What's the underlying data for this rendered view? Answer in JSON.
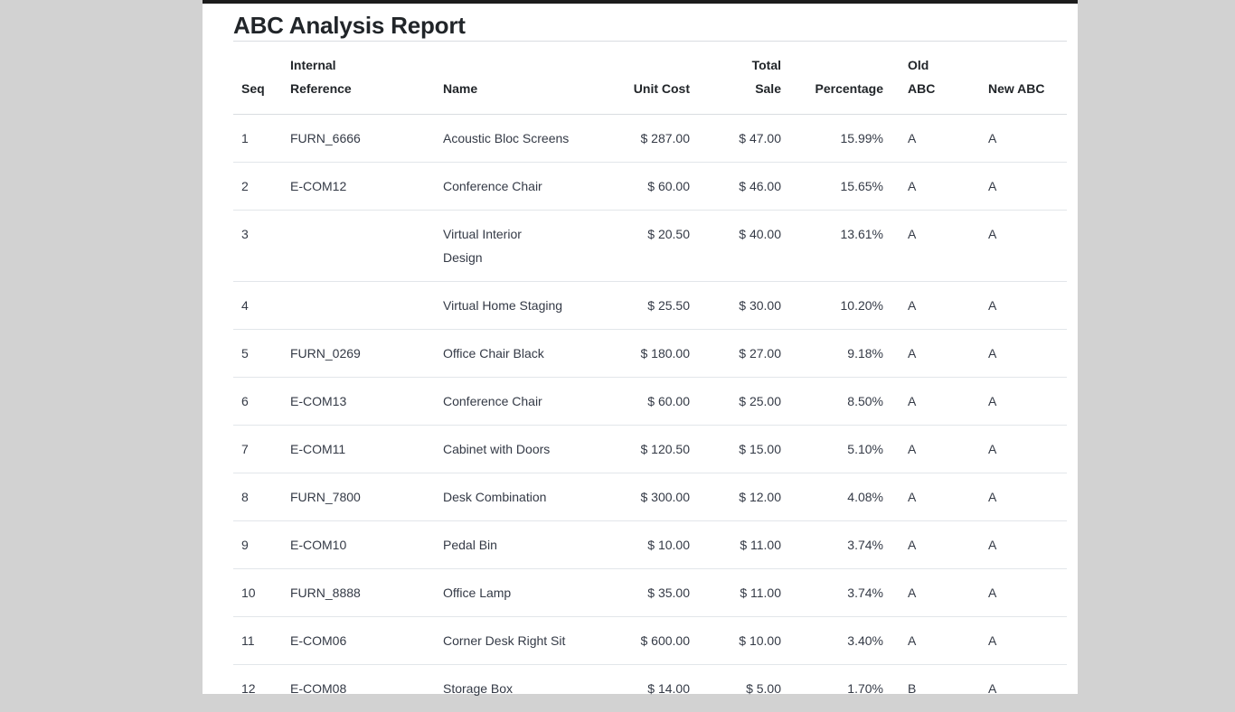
{
  "page": {
    "title": "ABC Analysis Report",
    "background_color": "#d2d2d2",
    "paper_color": "#ffffff",
    "top_edge_color": "#1c1c1c",
    "text_color": "#343a46",
    "heading_color": "#212529",
    "divider_color": "#d9dde1"
  },
  "table": {
    "columns": [
      {
        "key": "seq",
        "label": "Seq",
        "align": "left"
      },
      {
        "key": "internal_reference",
        "label": "Internal\nReference",
        "align": "left"
      },
      {
        "key": "name",
        "label": "Name",
        "align": "left"
      },
      {
        "key": "unit_cost",
        "label": "Unit Cost",
        "align": "right"
      },
      {
        "key": "total_sale",
        "label": "Total\nSale",
        "align": "right"
      },
      {
        "key": "percentage",
        "label": "Percentage",
        "align": "right"
      },
      {
        "key": "old_abc",
        "label": "Old\nABC",
        "align": "left"
      },
      {
        "key": "new_abc",
        "label": "New ABC",
        "align": "left"
      }
    ],
    "rows": [
      {
        "seq": "1",
        "internal_reference": "FURN_6666",
        "name": "Acoustic Bloc Screens",
        "unit_cost": "$ 287.00",
        "total_sale": "$ 47.00",
        "percentage": "15.99%",
        "old_abc": "A",
        "new_abc": "A"
      },
      {
        "seq": "2",
        "internal_reference": "E-COM12",
        "name": "Conference Chair",
        "unit_cost": "$ 60.00",
        "total_sale": "$ 46.00",
        "percentage": "15.65%",
        "old_abc": "A",
        "new_abc": "A"
      },
      {
        "seq": "3",
        "internal_reference": "",
        "name": "Virtual Interior\nDesign",
        "unit_cost": "$ 20.50",
        "total_sale": "$ 40.00",
        "percentage": "13.61%",
        "old_abc": "A",
        "new_abc": "A"
      },
      {
        "seq": "4",
        "internal_reference": "",
        "name": "Virtual Home Staging",
        "unit_cost": "$ 25.50",
        "total_sale": "$ 30.00",
        "percentage": "10.20%",
        "old_abc": "A",
        "new_abc": "A"
      },
      {
        "seq": "5",
        "internal_reference": "FURN_0269",
        "name": "Office Chair Black",
        "unit_cost": "$ 180.00",
        "total_sale": "$ 27.00",
        "percentage": "9.18%",
        "old_abc": "A",
        "new_abc": "A"
      },
      {
        "seq": "6",
        "internal_reference": "E-COM13",
        "name": "Conference Chair",
        "unit_cost": "$ 60.00",
        "total_sale": "$ 25.00",
        "percentage": "8.50%",
        "old_abc": "A",
        "new_abc": "A"
      },
      {
        "seq": "7",
        "internal_reference": "E-COM11",
        "name": "Cabinet with Doors",
        "unit_cost": "$ 120.50",
        "total_sale": "$ 15.00",
        "percentage": "5.10%",
        "old_abc": "A",
        "new_abc": "A"
      },
      {
        "seq": "8",
        "internal_reference": "FURN_7800",
        "name": "Desk Combination",
        "unit_cost": "$ 300.00",
        "total_sale": "$ 12.00",
        "percentage": "4.08%",
        "old_abc": "A",
        "new_abc": "A"
      },
      {
        "seq": "9",
        "internal_reference": "E-COM10",
        "name": "Pedal Bin",
        "unit_cost": "$ 10.00",
        "total_sale": "$ 11.00",
        "percentage": "3.74%",
        "old_abc": "A",
        "new_abc": "A"
      },
      {
        "seq": "10",
        "internal_reference": "FURN_8888",
        "name": "Office Lamp",
        "unit_cost": "$ 35.00",
        "total_sale": "$ 11.00",
        "percentage": "3.74%",
        "old_abc": "A",
        "new_abc": "A"
      },
      {
        "seq": "11",
        "internal_reference": "E-COM06",
        "name": "Corner Desk Right Sit",
        "unit_cost": "$ 600.00",
        "total_sale": "$ 10.00",
        "percentage": "3.40%",
        "old_abc": "A",
        "new_abc": "A"
      },
      {
        "seq": "12",
        "internal_reference": "E-COM08",
        "name": "Storage Box",
        "unit_cost": "$ 14.00",
        "total_sale": "$ 5.00",
        "percentage": "1.70%",
        "old_abc": "B",
        "new_abc": "A"
      }
    ]
  }
}
